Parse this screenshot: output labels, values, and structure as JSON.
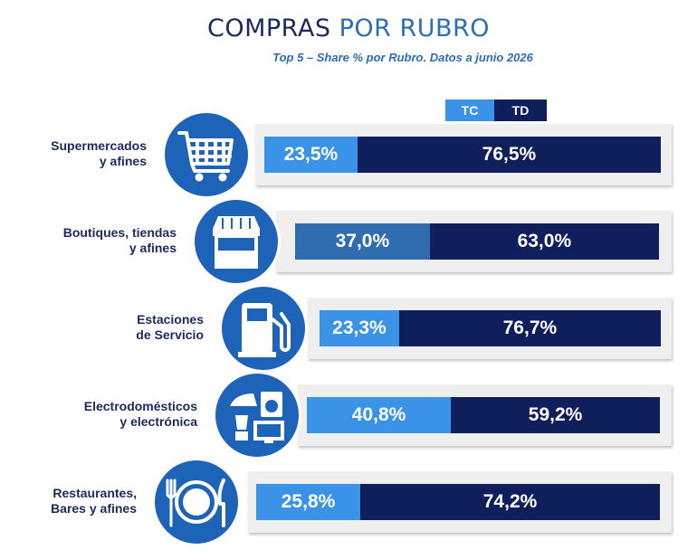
{
  "header": {
    "title_a": "COMPRAS",
    "title_b": "POR RUBRO",
    "subtitle": "Top 5 – Share % por Rubro. Datos a junio 2026"
  },
  "colors": {
    "tc": "#3a93e6",
    "tc_alt": "#2f6db0",
    "td": "#0e1f5b",
    "icon_bg": "#1d63b8"
  },
  "chart_data": {
    "type": "bar",
    "stacked": true,
    "orientation": "horizontal",
    "title": "COMPRAS POR RUBRO",
    "subtitle": "Top 5 – Share % por Rubro. Datos a junio 2026",
    "legend_position": "top",
    "categories": [
      "Supermercados y afines",
      "Boutiques, tiendas y afines",
      "Estaciones de Servicio",
      "Electrodomésticos y electrónica",
      "Restaurantes, Bares y afines"
    ],
    "series": [
      {
        "name": "TC",
        "values": [
          23.5,
          37.0,
          23.3,
          40.8,
          25.8
        ],
        "labels": [
          "23,5%",
          "37,0%",
          "23,3%",
          "40,8%",
          "25,8%"
        ]
      },
      {
        "name": "TD",
        "values": [
          76.5,
          63.0,
          76.7,
          59.2,
          74.2
        ],
        "labels": [
          "76,5%",
          "63,0%",
          "76,7%",
          "59,2%",
          "74,2%"
        ]
      }
    ],
    "category_lines": [
      [
        "Supermercados",
        "y afines"
      ],
      [
        "Boutiques, tiendas",
        "y afines"
      ],
      [
        "Estaciones",
        "de Servicio"
      ],
      [
        "Electrodomésticos",
        "y electrónica"
      ],
      [
        "Restaurantes,",
        "Bares y afines"
      ]
    ],
    "icons": [
      "shopping-cart-icon",
      "storefront-icon",
      "fuel-pump-icon",
      "appliances-icon",
      "plate-cutlery-icon"
    ],
    "xlim": [
      0,
      100
    ]
  }
}
